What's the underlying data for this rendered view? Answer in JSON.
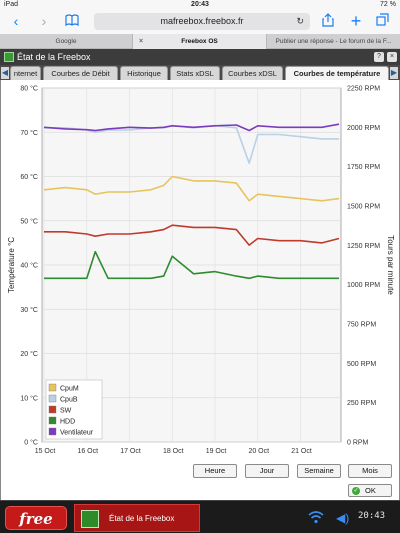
{
  "status_bar": {
    "device": "iPad",
    "wifi_icon": "wifi-icon",
    "time": "20:43",
    "battery": "72 %"
  },
  "browser": {
    "url": "mafreebox.freebox.fr",
    "tabs": [
      {
        "label": "Google"
      },
      {
        "label": "Freebox OS",
        "active": true
      },
      {
        "label": "Publier une réponse - Le forum de la F..."
      }
    ]
  },
  "window": {
    "title": "État de la Freebox",
    "app_tabs": [
      {
        "label": "nternet"
      },
      {
        "label": "Courbes de Débit"
      },
      {
        "label": "Historique"
      },
      {
        "label": "Stats xDSL"
      },
      {
        "label": "Courbes xDSL"
      },
      {
        "label": "Courbes de température",
        "active": true
      }
    ]
  },
  "chart_data": {
    "type": "line",
    "title": "",
    "ylabel": "Température °C",
    "y2label": "Tours par minute",
    "ylim": [
      0,
      80
    ],
    "y2lim": [
      0,
      2250
    ],
    "yticks": [
      "80 °C",
      "70 °C",
      "60 °C",
      "50 °C",
      "40 °C",
      "30 °C",
      "20 °C",
      "10 °C",
      "0 °C"
    ],
    "y2ticks": [
      "2250 RPM",
      "2000 RPM",
      "1750 RPM",
      "1500 RPM",
      "1250 RPM",
      "1000 RPM",
      "750 RPM",
      "500 RPM",
      "250 RPM",
      "0 RPM"
    ],
    "categories": [
      "15 Oct",
      "16 Oct",
      "17 Oct",
      "18 Oct",
      "19 Oct",
      "20 Oct",
      "21 Oct"
    ],
    "grid": true,
    "legend_position": "bottom-left",
    "x": [
      15.0,
      15.5,
      16.0,
      16.2,
      16.5,
      17.0,
      17.5,
      17.8,
      18.0,
      18.5,
      19.0,
      19.5,
      19.8,
      20.0,
      20.5,
      21.0,
      21.5,
      21.9
    ],
    "series": [
      {
        "name": "CpuM",
        "color": "#e8c45c",
        "axis": "left",
        "values": [
          57,
          57.5,
          57,
          56,
          56.5,
          56.5,
          57,
          58,
          60,
          59,
          59,
          58.5,
          54.5,
          56,
          55.5,
          55,
          54.5,
          55
        ]
      },
      {
        "name": "CpuB",
        "color": "#b8d1e6",
        "axis": "left",
        "values": [
          71,
          71,
          70.5,
          70,
          70.5,
          70.5,
          71,
          71,
          71.5,
          71,
          71.5,
          71,
          63,
          69.5,
          69.5,
          69,
          68.5,
          68.5
        ]
      },
      {
        "name": "SW",
        "color": "#c0392b",
        "axis": "left",
        "values": [
          47.5,
          47.5,
          47,
          46.5,
          47,
          47,
          47.5,
          48,
          49,
          48.5,
          48.5,
          48,
          44.5,
          46,
          45.5,
          45.5,
          45,
          46
        ]
      },
      {
        "name": "HDD",
        "color": "#2e8b2e",
        "axis": "left",
        "values": [
          37,
          37,
          37,
          43,
          37,
          37,
          37,
          37.5,
          42,
          38,
          38.5,
          37.5,
          37,
          37.5,
          37,
          37,
          37,
          37
        ]
      },
      {
        "name": "Ventilateur",
        "color": "#7b3bbf",
        "axis": "right",
        "values": [
          2000,
          1990,
          1985,
          1980,
          1990,
          2000,
          1995,
          2000,
          2010,
          2000,
          2010,
          2015,
          1980,
          2010,
          2000,
          2000,
          2000,
          2020
        ]
      }
    ]
  },
  "controls": {
    "periods": [
      "Heure",
      "Jour",
      "Semaine",
      "Mois"
    ],
    "ok_label": "OK"
  },
  "taskbar": {
    "logo_text": "free",
    "item_label": "État de la Freebox",
    "time": "20:43"
  }
}
